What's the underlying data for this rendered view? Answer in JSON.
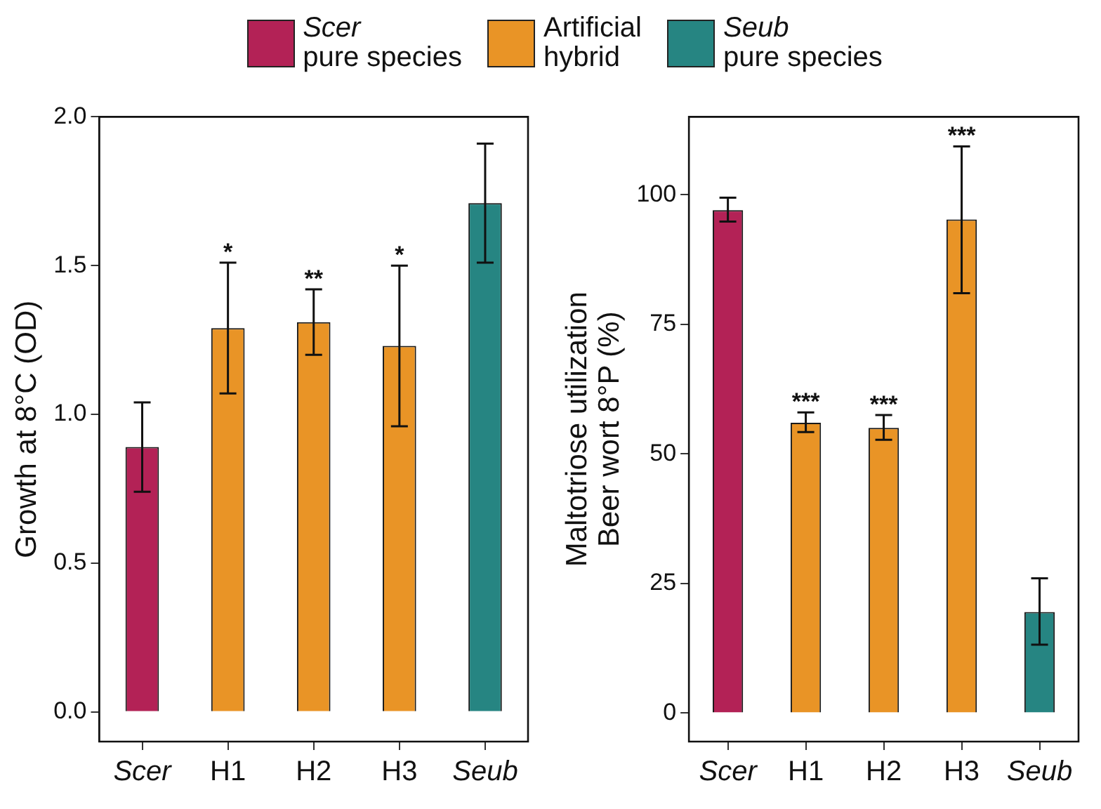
{
  "chart_data": [
    {
      "type": "bar",
      "ylabel": "Growth at 8°C (OD)",
      "categories": [
        "Scer",
        "H1",
        "H2",
        "H3",
        "Seub"
      ],
      "series": [
        {
          "name": "Scer\npure species",
          "color": "#b32256",
          "values": [
            0.89,
            null,
            null,
            null,
            null
          ],
          "errors": [
            [
              0.74,
              1.04
            ],
            null,
            null,
            null,
            null
          ]
        },
        {
          "name": "Artificial\nhybrid",
          "color": "#e99426",
          "values": [
            null,
            1.29,
            1.31,
            1.23,
            null
          ],
          "errors": [
            null,
            [
              1.07,
              1.51
            ],
            [
              1.2,
              1.42
            ],
            [
              0.96,
              1.5
            ],
            null
          ]
        },
        {
          "name": "Seub\npure species",
          "color": "#268582",
          "values": [
            null,
            null,
            null,
            null,
            1.71
          ],
          "errors": [
            null,
            null,
            null,
            null,
            [
              1.51,
              1.91
            ]
          ]
        }
      ],
      "ylim": [
        -0.1,
        2.0
      ],
      "yticks": [
        {
          "value": 0,
          "label": "0.0"
        },
        {
          "value": 0.5,
          "label": "0.5"
        },
        {
          "value": 1,
          "label": "1.0"
        },
        {
          "value": 1.5,
          "label": "1.5"
        },
        {
          "value": 2,
          "label": "2.0"
        }
      ],
      "annotations": [
        {
          "text": "*",
          "x": "H1",
          "y": 1.51
        },
        {
          "text": "**",
          "x": "H2",
          "y": 1.42
        },
        {
          "text": "*",
          "x": "H3",
          "y": 1.5
        }
      ],
      "grid": false,
      "legend": "top"
    },
    {
      "type": "bar",
      "ylabel": "Maltotriose utilization\nBeer wort 8°P (%)",
      "categories": [
        "Scer",
        "H1",
        "H2",
        "H3",
        "Seub"
      ],
      "series": [
        {
          "color": "#b32256",
          "values": [
            97,
            null,
            null,
            null,
            null
          ],
          "errors": [
            [
              94.8,
              99.4
            ],
            null,
            null,
            null,
            null
          ]
        },
        {
          "color": "#e99426",
          "values": [
            null,
            56,
            55,
            95.2,
            null
          ],
          "errors": [
            null,
            [
              54.2,
              58
            ],
            [
              52.7,
              57.5
            ],
            [
              81,
              109.3
            ],
            null
          ]
        },
        {
          "color": "#268582",
          "values": [
            null,
            null,
            null,
            null,
            19.5
          ],
          "errors": [
            null,
            null,
            null,
            null,
            [
              13.2,
              26
            ]
          ]
        }
      ],
      "ylim": [
        -5.5,
        115
      ],
      "yticks": [
        0,
        25,
        50,
        75,
        100
      ],
      "annotations": [
        {
          "text": "***",
          "x": "H1",
          "y": 58
        },
        {
          "text": "***",
          "x": "H2",
          "y": 57.5
        },
        {
          "text": "***",
          "x": "H3",
          "y": 109.3
        }
      ],
      "grid": false
    }
  ]
}
